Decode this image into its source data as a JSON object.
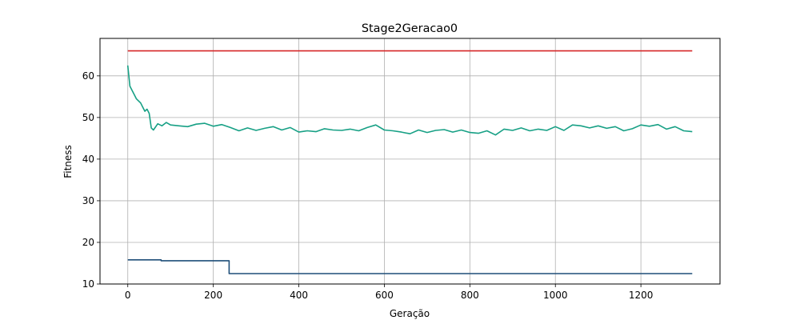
{
  "chart_data": {
    "type": "line",
    "title": "Stage2Geracao0",
    "xlabel": "Geração",
    "ylabel": "Fitness",
    "xlim": [
      -65,
      1385
    ],
    "ylim": [
      10,
      69
    ],
    "x_ticks": [
      0,
      200,
      400,
      600,
      800,
      1000,
      1200
    ],
    "y_ticks": [
      10,
      20,
      30,
      40,
      50,
      60
    ],
    "grid": true,
    "colors": {
      "max": "#d62728",
      "mean": "#17a085",
      "min": "#1f4e79"
    },
    "series": [
      {
        "key": "max",
        "x": [
          0,
          1320
        ],
        "values": [
          66,
          66
        ]
      },
      {
        "key": "mean",
        "x": [
          0,
          5,
          10,
          15,
          20,
          25,
          30,
          35,
          40,
          45,
          50,
          55,
          60,
          70,
          80,
          90,
          100,
          120,
          140,
          160,
          180,
          200,
          220,
          240,
          260,
          280,
          300,
          320,
          340,
          360,
          380,
          400,
          420,
          440,
          460,
          480,
          500,
          520,
          540,
          560,
          580,
          600,
          620,
          640,
          660,
          680,
          700,
          720,
          740,
          760,
          780,
          800,
          820,
          840,
          860,
          880,
          900,
          920,
          940,
          960,
          980,
          1000,
          1020,
          1040,
          1060,
          1080,
          1100,
          1120,
          1140,
          1160,
          1180,
          1200,
          1220,
          1240,
          1260,
          1280,
          1300,
          1320
        ],
        "values": [
          62.5,
          57.5,
          56.5,
          55.5,
          54.5,
          54.0,
          53.5,
          52.5,
          51.5,
          52.0,
          51.0,
          47.5,
          47.0,
          48.5,
          48.0,
          48.8,
          48.2,
          48.0,
          47.8,
          48.4,
          48.6,
          47.9,
          48.3,
          47.6,
          46.8,
          47.5,
          46.9,
          47.4,
          47.8,
          47.0,
          47.6,
          46.5,
          46.8,
          46.6,
          47.3,
          47.0,
          46.9,
          47.2,
          46.8,
          47.6,
          48.2,
          47.0,
          46.8,
          46.5,
          46.1,
          47.0,
          46.4,
          46.9,
          47.1,
          46.5,
          47.0,
          46.4,
          46.2,
          46.8,
          45.8,
          47.2,
          46.9,
          47.5,
          46.8,
          47.2,
          46.9,
          47.8,
          46.9,
          48.2,
          48.0,
          47.5,
          48.0,
          47.4,
          47.8,
          46.8,
          47.3,
          48.2,
          47.9,
          48.3,
          47.2,
          47.8,
          46.8,
          46.6
        ]
      },
      {
        "key": "min",
        "x": [
          0,
          78,
          78,
          237,
          237,
          1320
        ],
        "values": [
          15.8,
          15.8,
          15.6,
          15.6,
          12.5,
          12.5
        ]
      }
    ]
  }
}
